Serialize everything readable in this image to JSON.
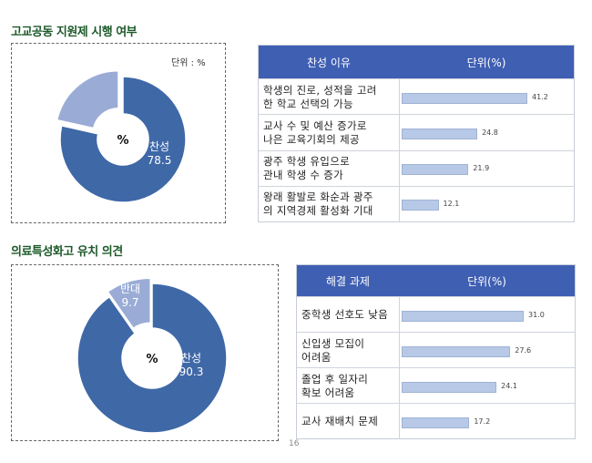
{
  "section1": {
    "title": "고교공동 지원제 시행 여부",
    "unit_note": "단위 : %"
  },
  "section2": {
    "title": "의료특성화고 유치 의견"
  },
  "chart_data": [
    {
      "type": "pie",
      "categories": [
        "찬성",
        ""
      ],
      "values": [
        78.5,
        21.5
      ],
      "center_label": "%",
      "colors": [
        "#3f68a7",
        "#9aacd6"
      ],
      "slice_labels": [
        {
          "name": "찬성",
          "value": "78.5"
        }
      ]
    },
    {
      "type": "table",
      "headers": [
        "찬성 이유",
        "단위(%)"
      ],
      "categories": [
        "학생의 진로, 성적을 고려\n한 학교 선택의 가능",
        "교사 수 및 예산 증가로\n나은 교육기회의 제공",
        "광주 학생 유입으로\n관내 학생 수 증가",
        "왕래 활발로 화순과 광주\n의 지역경제 활성화 기대"
      ],
      "values": [
        41.2,
        24.8,
        21.9,
        12.1
      ],
      "value_labels": [
        "41.2",
        "24.8",
        "21.9",
        "12.1"
      ]
    },
    {
      "type": "pie",
      "categories": [
        "찬성",
        "반대"
      ],
      "values": [
        90.3,
        9.7
      ],
      "center_label": "%",
      "colors": [
        "#3f68a7",
        "#9aacd6"
      ],
      "slice_labels": [
        {
          "name": "찬성",
          "value": "90.3"
        },
        {
          "name": "반대",
          "value": "9.7"
        }
      ]
    },
    {
      "type": "table",
      "headers": [
        "해결 과제",
        "단위(%)"
      ],
      "categories": [
        "중학생 선호도 낮음",
        "신입생 모집이\n어려움",
        "졸업 후 일자리\n확보 어려움",
        "교사 재배치 문제"
      ],
      "values": [
        31.0,
        27.6,
        24.1,
        17.2
      ],
      "value_labels": [
        "31.0",
        "27.6",
        "24.1",
        "17.2"
      ]
    }
  ],
  "page_number": "16"
}
